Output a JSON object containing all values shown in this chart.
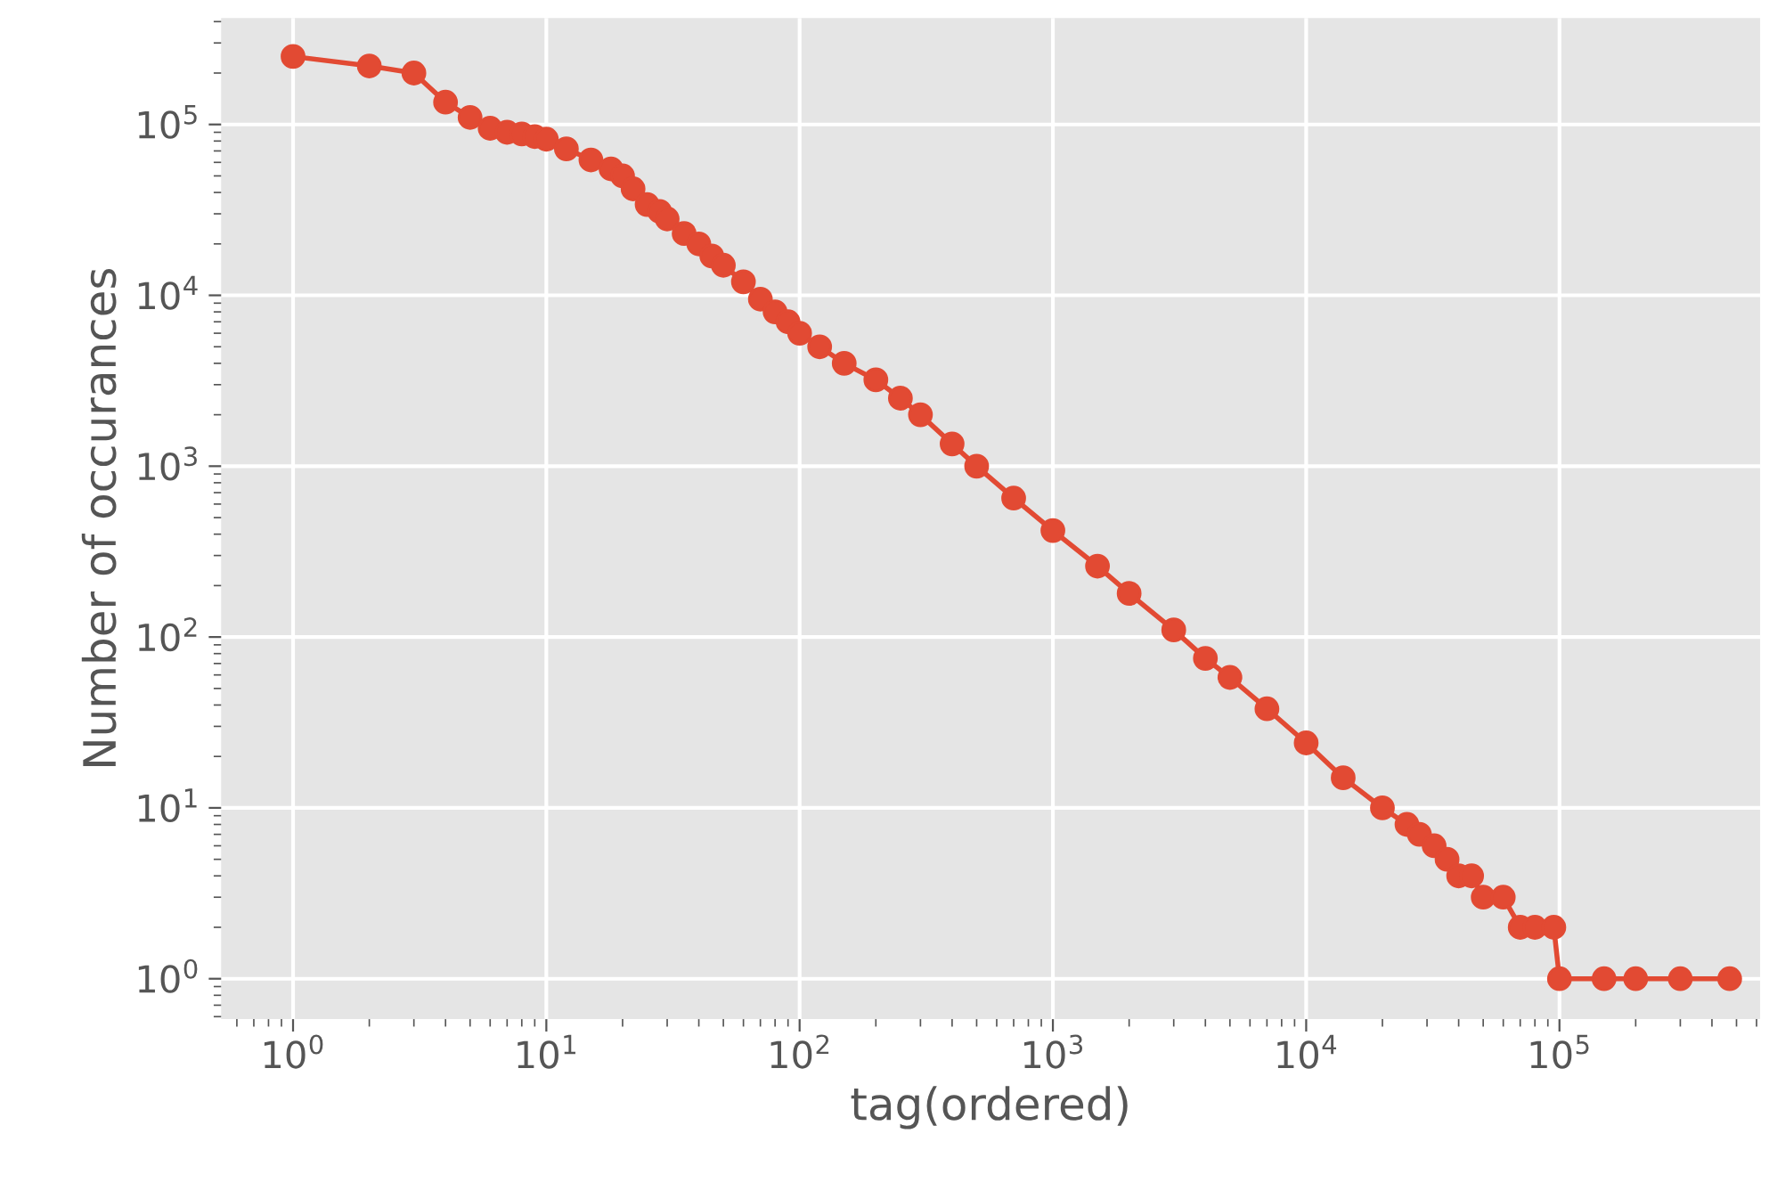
{
  "chart_data": {
    "type": "line",
    "xlabel": "tag(ordered)",
    "ylabel": "Number of occurances",
    "log": "xy",
    "xlim": [
      0.52,
      620000
    ],
    "ylim": [
      0.58,
      420000
    ],
    "xticks": [
      {
        "value": 1,
        "label": "10$^{0}$"
      },
      {
        "value": 10,
        "label": "10$^{1}$"
      },
      {
        "value": 100,
        "label": "10$^{2}$"
      },
      {
        "value": 1000,
        "label": "10$^{3}$"
      },
      {
        "value": 10000,
        "label": "10$^{4}$"
      },
      {
        "value": 100000,
        "label": "10$^{5}$"
      }
    ],
    "yticks": [
      {
        "value": 1,
        "label": "10$^{0}$"
      },
      {
        "value": 10,
        "label": "10$^{1}$"
      },
      {
        "value": 100,
        "label": "10$^{2}$"
      },
      {
        "value": 1000,
        "label": "10$^{3}$"
      },
      {
        "value": 10000,
        "label": "10$^{4}$"
      },
      {
        "value": 100000,
        "label": "10$^{5}$"
      }
    ],
    "grid": true,
    "marker": "circle",
    "line_style": "solid",
    "series": [
      {
        "color": "#e24a33",
        "x": [
          1,
          2,
          3,
          4,
          5,
          6,
          7,
          8,
          9,
          10,
          12,
          15,
          18,
          20,
          22,
          25,
          28,
          30,
          35,
          40,
          45,
          50,
          60,
          70,
          80,
          90,
          100,
          120,
          150,
          200,
          250,
          300,
          400,
          500,
          700,
          1000,
          1500,
          2000,
          3000,
          4000,
          5000,
          7000,
          10000,
          14000,
          20000,
          25000,
          28000,
          32000,
          36000,
          40000,
          45000,
          50000,
          60000,
          70000,
          80000,
          95000,
          100000,
          150000,
          200000,
          300000,
          470000
        ],
        "values": [
          250000,
          220000,
          200000,
          135000,
          110000,
          95000,
          90000,
          88000,
          85000,
          82000,
          72000,
          62000,
          55000,
          50000,
          42000,
          34000,
          31000,
          28000,
          23000,
          20000,
          17000,
          15000,
          12000,
          9500,
          8000,
          7000,
          6000,
          5000,
          4000,
          3200,
          2500,
          2000,
          1350,
          1000,
          650,
          420,
          260,
          180,
          110,
          75,
          58,
          38,
          24,
          15,
          10,
          8,
          7,
          6,
          5,
          4,
          4,
          3,
          3,
          2,
          2,
          2,
          1,
          1,
          1,
          1,
          1
        ]
      }
    ]
  }
}
